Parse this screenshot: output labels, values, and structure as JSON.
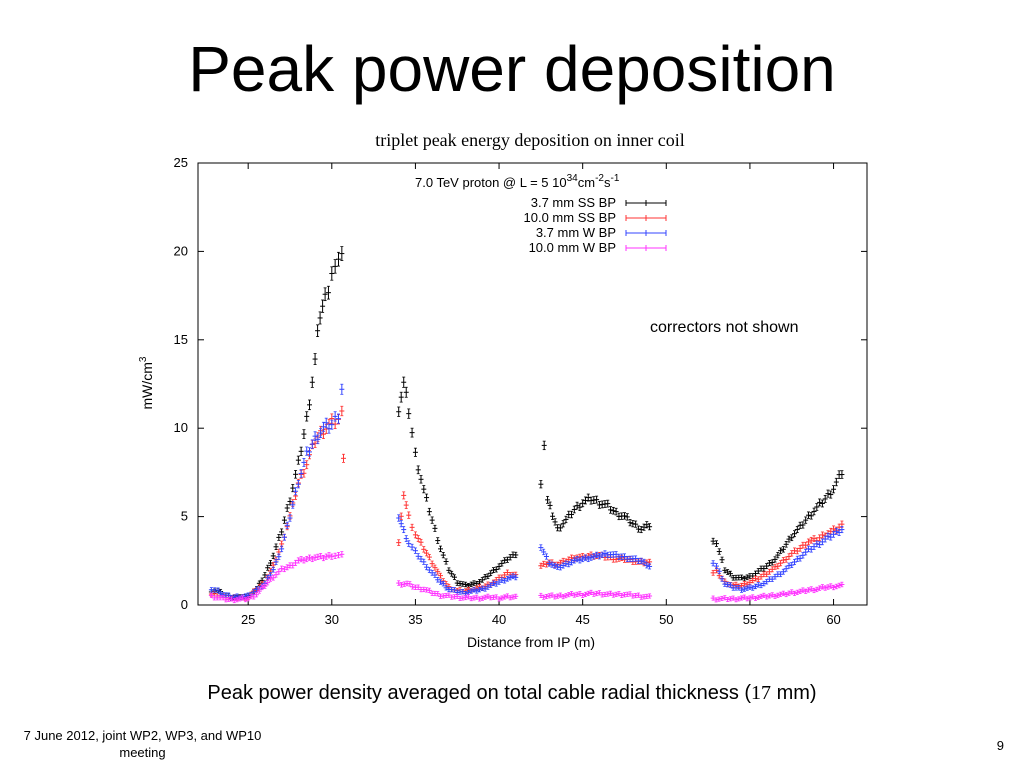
{
  "slide": {
    "title": "Peak power deposition",
    "caption_before": "Peak power density averaged on total cable radial thickness (",
    "caption_value": "17",
    "caption_after": " mm)",
    "footer_left": "7 June 2012, joint WP2, WP3, and WP10 meeting",
    "page_number": "9"
  },
  "chart_data": {
    "type": "scatter",
    "title": "triplet peak energy deposition on inner coil",
    "xlabel": "Distance from IP (m)",
    "ylabel": "mW/cm",
    "ylabel_sup": "3",
    "xlim": [
      22,
      62
    ],
    "ylim": [
      0,
      25
    ],
    "xticks": [
      25,
      30,
      35,
      40,
      45,
      50,
      55,
      60
    ],
    "yticks": [
      0,
      5,
      10,
      15,
      20,
      25
    ],
    "grid": false,
    "legend_position": "top-right",
    "legend_header": "7.0 TeV proton @ L = 5 10",
    "legend_header_sup": "34",
    "legend_header_unit": "cm",
    "legend_header_unit_sup": "-2",
    "legend_header_unit2": "s",
    "legend_header_unit2_sup": "-1",
    "annotation": "correctors not shown",
    "series": [
      {
        "name": "3.7 mm SS BP",
        "color": "#000000",
        "segments": [
          [
            [
              22.8,
              0.8
            ],
            [
              23.2,
              0.8
            ],
            [
              23.5,
              0.6
            ],
            [
              24,
              0.45
            ],
            [
              24.5,
              0.4
            ],
            [
              25,
              0.5
            ],
            [
              25.5,
              0.9
            ],
            [
              26,
              1.7
            ],
            [
              26.5,
              2.8
            ],
            [
              27,
              4.2
            ],
            [
              27.5,
              6.0
            ],
            [
              28,
              8.0
            ],
            [
              28.5,
              10.5
            ],
            [
              29,
              13.8
            ],
            [
              29.3,
              16.5
            ],
            [
              29.6,
              17.3
            ],
            [
              30,
              18.9
            ],
            [
              30.4,
              19.1
            ],
            [
              30.6,
              20.2
            ]
          ],
          [
            [
              34,
              11.2
            ],
            [
              34.3,
              12.5
            ],
            [
              34.6,
              11.0
            ],
            [
              35,
              8.5
            ],
            [
              35.5,
              6.5
            ],
            [
              36,
              4.8
            ],
            [
              36.5,
              3.2
            ],
            [
              37,
              2.0
            ],
            [
              37.5,
              1.3
            ],
            [
              38,
              1.1
            ],
            [
              38.5,
              1.2
            ],
            [
              39,
              1.4
            ],
            [
              39.5,
              1.8
            ],
            [
              40,
              2.2
            ],
            [
              40.5,
              2.6
            ],
            [
              41,
              2.9
            ]
          ],
          [
            [
              42.5,
              7.0
            ],
            [
              42.7,
              9.1
            ],
            [
              42.9,
              5.9
            ],
            [
              43.5,
              4.3
            ],
            [
              44,
              4.8
            ],
            [
              44.5,
              5.4
            ],
            [
              45,
              5.8
            ],
            [
              45.5,
              6.0
            ],
            [
              46,
              5.8
            ],
            [
              46.5,
              5.6
            ],
            [
              47,
              5.2
            ],
            [
              47.5,
              5.0
            ],
            [
              48,
              4.6
            ],
            [
              48.5,
              4.3
            ],
            [
              49,
              4.5
            ]
          ],
          [
            [
              52.8,
              3.7
            ],
            [
              53,
              3.5
            ],
            [
              53.5,
              2.0
            ],
            [
              54,
              1.6
            ],
            [
              54.5,
              1.5
            ],
            [
              55,
              1.6
            ],
            [
              55.5,
              1.9
            ],
            [
              56,
              2.2
            ],
            [
              56.5,
              2.6
            ],
            [
              57,
              3.2
            ],
            [
              57.5,
              3.9
            ],
            [
              58,
              4.4
            ],
            [
              58.5,
              5.0
            ],
            [
              59,
              5.5
            ],
            [
              59.5,
              6.0
            ],
            [
              60,
              6.6
            ],
            [
              60.5,
              7.5
            ]
          ]
        ]
      },
      {
        "name": "10.0 mm SS BP",
        "color": "#ff3333",
        "segments": [
          [
            [
              22.8,
              0.6
            ],
            [
              23.5,
              0.5
            ],
            [
              24,
              0.4
            ],
            [
              25,
              0.45
            ],
            [
              26,
              1.3
            ],
            [
              26.5,
              2.2
            ],
            [
              27,
              3.4
            ],
            [
              27.5,
              5.0
            ],
            [
              28,
              6.9
            ],
            [
              28.5,
              8.0
            ],
            [
              29,
              9.3
            ],
            [
              29.5,
              9.9
            ],
            [
              30,
              10.3
            ],
            [
              30.4,
              10.5
            ],
            [
              30.6,
              10.8
            ],
            [
              30.7,
              8.5
            ]
          ],
          [
            [
              34,
              3.5
            ],
            [
              34.3,
              6.3
            ],
            [
              34.6,
              5.0
            ],
            [
              35,
              4.0
            ],
            [
              35.5,
              3.2
            ],
            [
              36,
              2.4
            ],
            [
              36.5,
              1.6
            ],
            [
              37,
              1.0
            ],
            [
              37.5,
              0.8
            ],
            [
              38,
              0.8
            ],
            [
              38.5,
              0.9
            ],
            [
              39,
              1.0
            ],
            [
              39.5,
              1.2
            ],
            [
              40,
              1.5
            ],
            [
              40.5,
              1.8
            ],
            [
              41,
              1.7
            ]
          ],
          [
            [
              42.5,
              2.2
            ],
            [
              43,
              2.4
            ],
            [
              43.5,
              2.3
            ],
            [
              44,
              2.5
            ],
            [
              44.5,
              2.7
            ],
            [
              45,
              2.7
            ],
            [
              45.5,
              2.8
            ],
            [
              46,
              2.8
            ],
            [
              46.5,
              2.7
            ],
            [
              47,
              2.6
            ],
            [
              47.5,
              2.6
            ],
            [
              48,
              2.5
            ],
            [
              48.5,
              2.4
            ],
            [
              49,
              2.4
            ]
          ],
          [
            [
              52.8,
              1.8
            ],
            [
              53,
              1.9
            ],
            [
              53.5,
              1.3
            ],
            [
              54,
              1.1
            ],
            [
              54.5,
              1.1
            ],
            [
              55,
              1.3
            ],
            [
              55.5,
              1.5
            ],
            [
              56,
              1.8
            ],
            [
              56.5,
              2.1
            ],
            [
              57,
              2.5
            ],
            [
              57.5,
              2.9
            ],
            [
              58,
              3.2
            ],
            [
              58.5,
              3.6
            ],
            [
              59,
              3.7
            ],
            [
              59.5,
              4.0
            ],
            [
              60,
              4.2
            ],
            [
              60.5,
              4.5
            ]
          ]
        ]
      },
      {
        "name": "3.7 mm  W BP",
        "color": "#3344ff",
        "segments": [
          [
            [
              22.8,
              0.9
            ],
            [
              23.2,
              0.8
            ],
            [
              23.5,
              0.6
            ],
            [
              24,
              0.45
            ],
            [
              25,
              0.5
            ],
            [
              26,
              1.2
            ],
            [
              26.5,
              2.0
            ],
            [
              27,
              3.2
            ],
            [
              27.5,
              5.0
            ],
            [
              28,
              7.0
            ],
            [
              28.5,
              8.5
            ],
            [
              29,
              9.4
            ],
            [
              29.5,
              10.0
            ],
            [
              30,
              10.2
            ],
            [
              30.4,
              10.8
            ],
            [
              30.6,
              12.3
            ]
          ],
          [
            [
              34,
              5.0
            ],
            [
              34.3,
              4.2
            ],
            [
              34.6,
              3.5
            ],
            [
              35,
              3.0
            ],
            [
              35.5,
              2.4
            ],
            [
              36,
              1.8
            ],
            [
              36.5,
              1.3
            ],
            [
              37,
              0.9
            ],
            [
              37.5,
              0.75
            ],
            [
              38,
              0.7
            ],
            [
              38.5,
              0.8
            ],
            [
              39,
              0.9
            ],
            [
              39.5,
              1.1
            ],
            [
              40,
              1.3
            ],
            [
              40.5,
              1.5
            ],
            [
              41,
              1.6
            ]
          ],
          [
            [
              42.5,
              3.3
            ],
            [
              43,
              2.4
            ],
            [
              43.5,
              2.1
            ],
            [
              44,
              2.3
            ],
            [
              44.5,
              2.5
            ],
            [
              45,
              2.6
            ],
            [
              45.5,
              2.7
            ],
            [
              46,
              2.8
            ],
            [
              46.5,
              2.9
            ],
            [
              47,
              2.8
            ],
            [
              47.5,
              2.7
            ],
            [
              48,
              2.6
            ],
            [
              48.5,
              2.5
            ],
            [
              49,
              2.2
            ]
          ],
          [
            [
              52.8,
              2.4
            ],
            [
              53,
              2.2
            ],
            [
              53.5,
              1.2
            ],
            [
              54,
              1.0
            ],
            [
              54.5,
              0.9
            ],
            [
              55,
              0.95
            ],
            [
              55.5,
              1.1
            ],
            [
              56,
              1.3
            ],
            [
              56.5,
              1.6
            ],
            [
              57,
              1.9
            ],
            [
              57.5,
              2.3
            ],
            [
              58,
              2.7
            ],
            [
              58.5,
              3.1
            ],
            [
              59,
              3.4
            ],
            [
              59.5,
              3.7
            ],
            [
              60,
              4.0
            ],
            [
              60.5,
              4.3
            ]
          ]
        ]
      },
      {
        "name": "10.0 mm  W BP",
        "color": "#ff33ff",
        "segments": [
          [
            [
              22.8,
              0.5
            ],
            [
              23.5,
              0.35
            ],
            [
              24,
              0.3
            ],
            [
              25,
              0.35
            ],
            [
              25.5,
              0.6
            ],
            [
              26,
              1.1
            ],
            [
              26.5,
              1.6
            ],
            [
              27,
              2.0
            ],
            [
              27.5,
              2.2
            ],
            [
              28,
              2.5
            ],
            [
              28.5,
              2.6
            ],
            [
              29,
              2.7
            ],
            [
              29.5,
              2.7
            ],
            [
              30,
              2.8
            ],
            [
              30.4,
              2.8
            ],
            [
              30.6,
              2.8
            ]
          ],
          [
            [
              34,
              1.2
            ],
            [
              34.5,
              1.2
            ],
            [
              35,
              1.0
            ],
            [
              35.5,
              0.9
            ],
            [
              36,
              0.7
            ],
            [
              36.5,
              0.55
            ],
            [
              37,
              0.5
            ],
            [
              37.5,
              0.45
            ],
            [
              38,
              0.4
            ],
            [
              38.5,
              0.4
            ],
            [
              39,
              0.4
            ],
            [
              39.5,
              0.45
            ],
            [
              40,
              0.4
            ],
            [
              40.5,
              0.45
            ],
            [
              41,
              0.45
            ]
          ],
          [
            [
              42.5,
              0.5
            ],
            [
              43,
              0.5
            ],
            [
              43.5,
              0.5
            ],
            [
              44,
              0.55
            ],
            [
              44.5,
              0.6
            ],
            [
              45,
              0.6
            ],
            [
              45.5,
              0.65
            ],
            [
              46,
              0.65
            ],
            [
              46.5,
              0.6
            ],
            [
              47,
              0.6
            ],
            [
              47.5,
              0.6
            ],
            [
              48,
              0.55
            ],
            [
              48.5,
              0.5
            ],
            [
              49,
              0.45
            ]
          ],
          [
            [
              52.8,
              0.35
            ],
            [
              53.5,
              0.35
            ],
            [
              54,
              0.35
            ],
            [
              55,
              0.4
            ],
            [
              55.5,
              0.45
            ],
            [
              56,
              0.5
            ],
            [
              56.5,
              0.55
            ],
            [
              57,
              0.6
            ],
            [
              57.5,
              0.7
            ],
            [
              58,
              0.75
            ],
            [
              58.5,
              0.85
            ],
            [
              59,
              0.9
            ],
            [
              59.5,
              1.0
            ],
            [
              60,
              1.05
            ],
            [
              60.5,
              1.1
            ]
          ]
        ]
      }
    ]
  }
}
